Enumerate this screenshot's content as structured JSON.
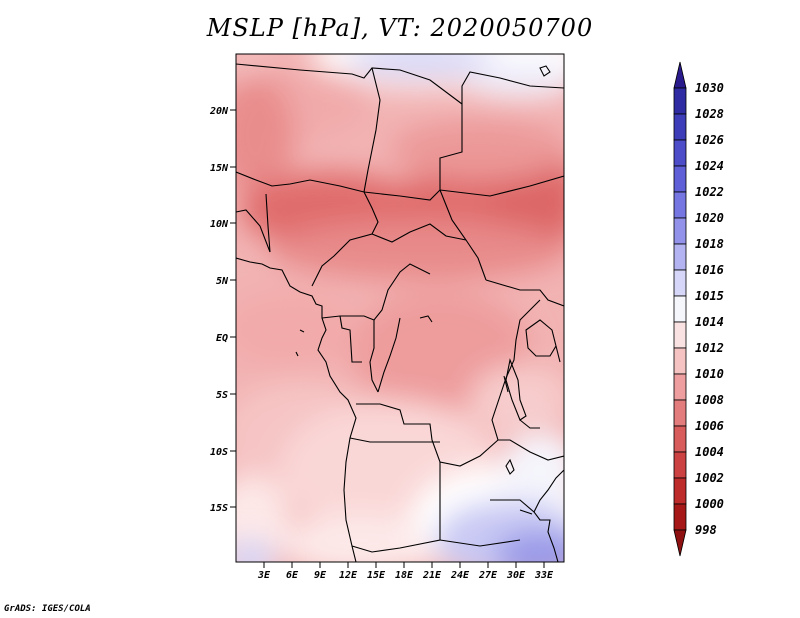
{
  "title": "MSLP [hPa], VT: 2020050700",
  "credit": "GrADS: IGES/COLA",
  "lat_labels": [
    "20N",
    "15N",
    "10N",
    "5N",
    "EQ",
    "5S",
    "10S",
    "15S"
  ],
  "lon_labels": [
    "3E",
    "6E",
    "9E",
    "12E",
    "15E",
    "18E",
    "21E",
    "24E",
    "27E",
    "30E",
    "33E"
  ],
  "colorbar": {
    "levels": [
      "1030",
      "1028",
      "1026",
      "1024",
      "1022",
      "1020",
      "1018",
      "1016",
      "1015",
      "1014",
      "1012",
      "1010",
      "1008",
      "1006",
      "1004",
      "1002",
      "1000",
      "998"
    ],
    "colors": [
      "#2a1b8c",
      "#2e2ba3",
      "#3d3cb9",
      "#4d4dca",
      "#5f5fd8",
      "#7676e2",
      "#9292ea",
      "#b3b3f2",
      "#d6d6f8",
      "#f5f5fc",
      "#fbe2e2",
      "#f6c3c3",
      "#ee9e9e",
      "#e37c7c",
      "#d85c5c",
      "#cc4141",
      "#be2b2b",
      "#a61818",
      "#8e1010"
    ]
  }
}
